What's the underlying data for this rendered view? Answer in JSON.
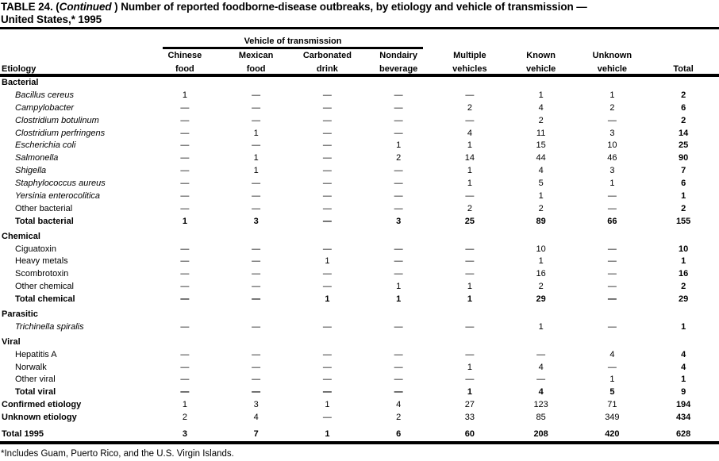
{
  "title": {
    "part1": "TABLE 24. (",
    "continued": "Continued",
    "part2": " ) Number of reported foodborne-disease outbreaks, by etiology and vehicle of transmission —",
    "line2": "United States,* 1995"
  },
  "header": {
    "spanner": "Vehicle of transmission",
    "etiology": "Etiology",
    "columns": [
      {
        "line1": "Chinese",
        "line2": "food"
      },
      {
        "line1": "Mexican",
        "line2": "food"
      },
      {
        "line1": "Carbonated",
        "line2": "drink"
      },
      {
        "line1": "Nondairy",
        "line2": "beverage"
      },
      {
        "line1": "Multiple",
        "line2": "vehicles"
      },
      {
        "line1": "Known",
        "line2": "vehicle"
      },
      {
        "line1": "Unknown",
        "line2": "vehicle"
      },
      {
        "line1": "",
        "line2": "Total"
      }
    ]
  },
  "rows": [
    {
      "type": "section",
      "label": "Bacterial"
    },
    {
      "type": "data",
      "italic": true,
      "label": "Bacillus cereus",
      "values": [
        "1",
        "—",
        "—",
        "—",
        "—",
        "1",
        "1",
        "2"
      ]
    },
    {
      "type": "data",
      "italic": true,
      "label": "Campylobacter",
      "values": [
        "—",
        "—",
        "—",
        "—",
        "2",
        "4",
        "2",
        "6"
      ]
    },
    {
      "type": "data",
      "italic": true,
      "label": "Clostridium botulinum",
      "values": [
        "—",
        "—",
        "—",
        "—",
        "—",
        "2",
        "—",
        "2"
      ]
    },
    {
      "type": "data",
      "italic": true,
      "label": "Clostridium perfringens",
      "values": [
        "—",
        "1",
        "—",
        "—",
        "4",
        "11",
        "3",
        "14"
      ]
    },
    {
      "type": "data",
      "italic": true,
      "label": "Escherichia coli",
      "values": [
        "—",
        "—",
        "—",
        "1",
        "1",
        "15",
        "10",
        "25"
      ]
    },
    {
      "type": "data",
      "italic": true,
      "label": "Salmonella",
      "values": [
        "—",
        "1",
        "—",
        "2",
        "14",
        "44",
        "46",
        "90"
      ]
    },
    {
      "type": "data",
      "italic": true,
      "label": "Shigella",
      "values": [
        "—",
        "1",
        "—",
        "—",
        "1",
        "4",
        "3",
        "7"
      ]
    },
    {
      "type": "data",
      "italic": true,
      "label": "Staphylococcus aureus",
      "values": [
        "—",
        "—",
        "—",
        "—",
        "1",
        "5",
        "1",
        "6"
      ]
    },
    {
      "type": "data",
      "italic": true,
      "label": "Yersinia enterocolitica",
      "values": [
        "—",
        "—",
        "—",
        "—",
        "—",
        "1",
        "—",
        "1"
      ]
    },
    {
      "type": "data",
      "italic": false,
      "label": "Other bacterial",
      "values": [
        "—",
        "—",
        "—",
        "—",
        "2",
        "2",
        "—",
        "2"
      ]
    },
    {
      "type": "subtotal",
      "label": "Total bacterial",
      "values": [
        "1",
        "3",
        "—",
        "3",
        "25",
        "89",
        "66",
        "155"
      ]
    },
    {
      "type": "section",
      "label": "Chemical"
    },
    {
      "type": "data",
      "italic": false,
      "label": "Ciguatoxin",
      "values": [
        "—",
        "—",
        "—",
        "—",
        "—",
        "10",
        "—",
        "10"
      ]
    },
    {
      "type": "data",
      "italic": false,
      "label": "Heavy metals",
      "values": [
        "—",
        "—",
        "1",
        "—",
        "—",
        "1",
        "—",
        "1"
      ]
    },
    {
      "type": "data",
      "italic": false,
      "label": "Scombrotoxin",
      "values": [
        "—",
        "—",
        "—",
        "—",
        "—",
        "16",
        "—",
        "16"
      ]
    },
    {
      "type": "data",
      "italic": false,
      "label": "Other chemical",
      "values": [
        "—",
        "—",
        "—",
        "1",
        "1",
        "2",
        "—",
        "2"
      ]
    },
    {
      "type": "subtotal",
      "label": "Total chemical",
      "values": [
        "—",
        "—",
        "1",
        "1",
        "1",
        "29",
        "—",
        "29"
      ]
    },
    {
      "type": "section",
      "label": "Parasitic"
    },
    {
      "type": "data",
      "italic": true,
      "label": "Trichinella spiralis",
      "values": [
        "—",
        "—",
        "—",
        "—",
        "—",
        "1",
        "—",
        "1"
      ]
    },
    {
      "type": "section",
      "label": "Viral"
    },
    {
      "type": "data",
      "italic": false,
      "label": "Hepatitis A",
      "values": [
        "—",
        "—",
        "—",
        "—",
        "—",
        "—",
        "4",
        "4"
      ]
    },
    {
      "type": "data",
      "italic": false,
      "label": "Norwalk",
      "values": [
        "—",
        "—",
        "—",
        "—",
        "1",
        "4",
        "—",
        "4"
      ]
    },
    {
      "type": "data",
      "italic": false,
      "label": "Other viral",
      "values": [
        "—",
        "—",
        "—",
        "—",
        "—",
        "—",
        "1",
        "1"
      ]
    },
    {
      "type": "subtotal",
      "label": "Total viral",
      "values": [
        "—",
        "—",
        "—",
        "—",
        "1",
        "4",
        "5",
        "9"
      ]
    },
    {
      "type": "summary",
      "label": "Confirmed etiology",
      "values": [
        "1",
        "3",
        "1",
        "4",
        "27",
        "123",
        "71",
        "194"
      ]
    },
    {
      "type": "summary",
      "label": "Unknown etiology",
      "values": [
        "2",
        "4",
        "—",
        "2",
        "33",
        "85",
        "349",
        "434"
      ]
    },
    {
      "type": "grand",
      "label": "Total 1995",
      "values": [
        "3",
        "7",
        "1",
        "6",
        "60",
        "208",
        "420",
        "628"
      ]
    }
  ],
  "footnote": "*Includes Guam, Puerto Rico, and the U.S. Virgin Islands."
}
